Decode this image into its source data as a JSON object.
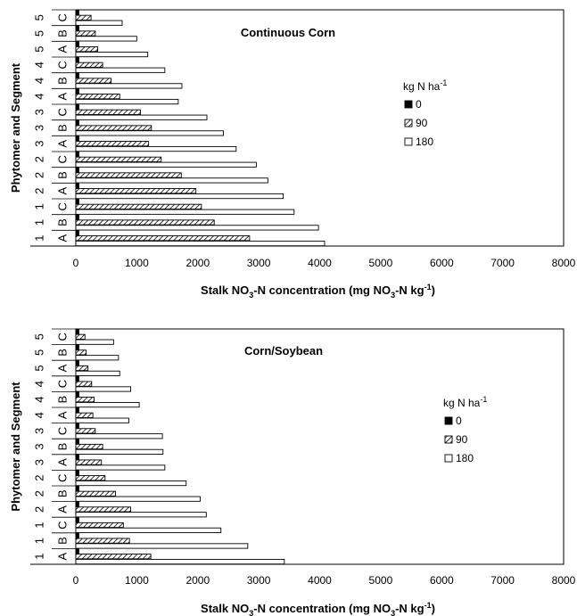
{
  "chart_data": [
    {
      "type": "bar",
      "orientation": "horizontal",
      "title": "Continuous Corn",
      "ylabel": "Phytomer and Segment",
      "xlabel": {
        "pre": "Stalk NO",
        "sub1": "3",
        "mid": "-N concentration (mg NO",
        "sub2": "3",
        "post": "-N kg",
        "sup": "-1",
        "end": ")"
      },
      "xlim": [
        0,
        8000
      ],
      "xticks": [
        "0",
        "1000",
        "2000",
        "3000",
        "4000",
        "5000",
        "6000",
        "7000",
        "8000"
      ],
      "categories": [
        {
          "phytomer": "1",
          "segment": "A"
        },
        {
          "phytomer": "1",
          "segment": "B"
        },
        {
          "phytomer": "1",
          "segment": "C"
        },
        {
          "phytomer": "2",
          "segment": "A"
        },
        {
          "phytomer": "2",
          "segment": "B"
        },
        {
          "phytomer": "2",
          "segment": "C"
        },
        {
          "phytomer": "3",
          "segment": "A"
        },
        {
          "phytomer": "3",
          "segment": "B"
        },
        {
          "phytomer": "3",
          "segment": "C"
        },
        {
          "phytomer": "4",
          "segment": "A"
        },
        {
          "phytomer": "4",
          "segment": "B"
        },
        {
          "phytomer": "4",
          "segment": "C"
        },
        {
          "phytomer": "5",
          "segment": "A"
        },
        {
          "phytomer": "5",
          "segment": "B"
        },
        {
          "phytomer": "5",
          "segment": "C"
        }
      ],
      "legend": {
        "title_pre": "kg N ha",
        "title_sup": "-1",
        "position": "right"
      },
      "series": [
        {
          "name": "0",
          "pattern": "solid",
          "values": [
            50,
            50,
            50,
            50,
            50,
            50,
            50,
            50,
            50,
            50,
            50,
            50,
            50,
            50,
            50
          ]
        },
        {
          "name": "90",
          "pattern": "hatched",
          "values": [
            2850,
            2270,
            2060,
            1970,
            1730,
            1400,
            1190,
            1240,
            1060,
            720,
            580,
            440,
            360,
            320,
            250
          ]
        },
        {
          "name": "180",
          "pattern": "open",
          "values": [
            4080,
            3980,
            3580,
            3400,
            3150,
            2960,
            2630,
            2420,
            2150,
            1680,
            1740,
            1460,
            1180,
            1000,
            760
          ]
        }
      ]
    },
    {
      "type": "bar",
      "orientation": "horizontal",
      "title": "Corn/Soybean",
      "ylabel": "Phytomer and Segment",
      "xlabel": {
        "pre": "Stalk NO",
        "sub1": "3",
        "mid": "-N concentration (mg NO",
        "sub2": "3",
        "post": "-N kg",
        "sup": "-1",
        "end": ")"
      },
      "xlim": [
        0,
        8000
      ],
      "xticks": [
        "0",
        "1000",
        "2000",
        "3000",
        "4000",
        "5000",
        "6000",
        "7000",
        "8000"
      ],
      "categories": [
        {
          "phytomer": "1",
          "segment": "A"
        },
        {
          "phytomer": "1",
          "segment": "B"
        },
        {
          "phytomer": "1",
          "segment": "C"
        },
        {
          "phytomer": "2",
          "segment": "A"
        },
        {
          "phytomer": "2",
          "segment": "B"
        },
        {
          "phytomer": "2",
          "segment": "C"
        },
        {
          "phytomer": "3",
          "segment": "A"
        },
        {
          "phytomer": "3",
          "segment": "B"
        },
        {
          "phytomer": "3",
          "segment": "C"
        },
        {
          "phytomer": "4",
          "segment": "A"
        },
        {
          "phytomer": "4",
          "segment": "B"
        },
        {
          "phytomer": "4",
          "segment": "C"
        },
        {
          "phytomer": "5",
          "segment": "A"
        },
        {
          "phytomer": "5",
          "segment": "B"
        },
        {
          "phytomer": "5",
          "segment": "C"
        }
      ],
      "legend": {
        "title_pre": "kg N ha",
        "title_sup": "-1",
        "position": "right"
      },
      "series": [
        {
          "name": "0",
          "pattern": "solid",
          "values": [
            50,
            50,
            50,
            50,
            50,
            50,
            50,
            50,
            50,
            50,
            50,
            50,
            50,
            50,
            50
          ]
        },
        {
          "name": "90",
          "pattern": "hatched",
          "values": [
            1230,
            880,
            780,
            900,
            650,
            480,
            420,
            440,
            320,
            280,
            300,
            260,
            200,
            170,
            150
          ]
        },
        {
          "name": "180",
          "pattern": "open",
          "values": [
            3420,
            2820,
            2380,
            2140,
            2040,
            1810,
            1460,
            1430,
            1420,
            870,
            1040,
            900,
            720,
            700,
            620
          ]
        }
      ]
    }
  ]
}
